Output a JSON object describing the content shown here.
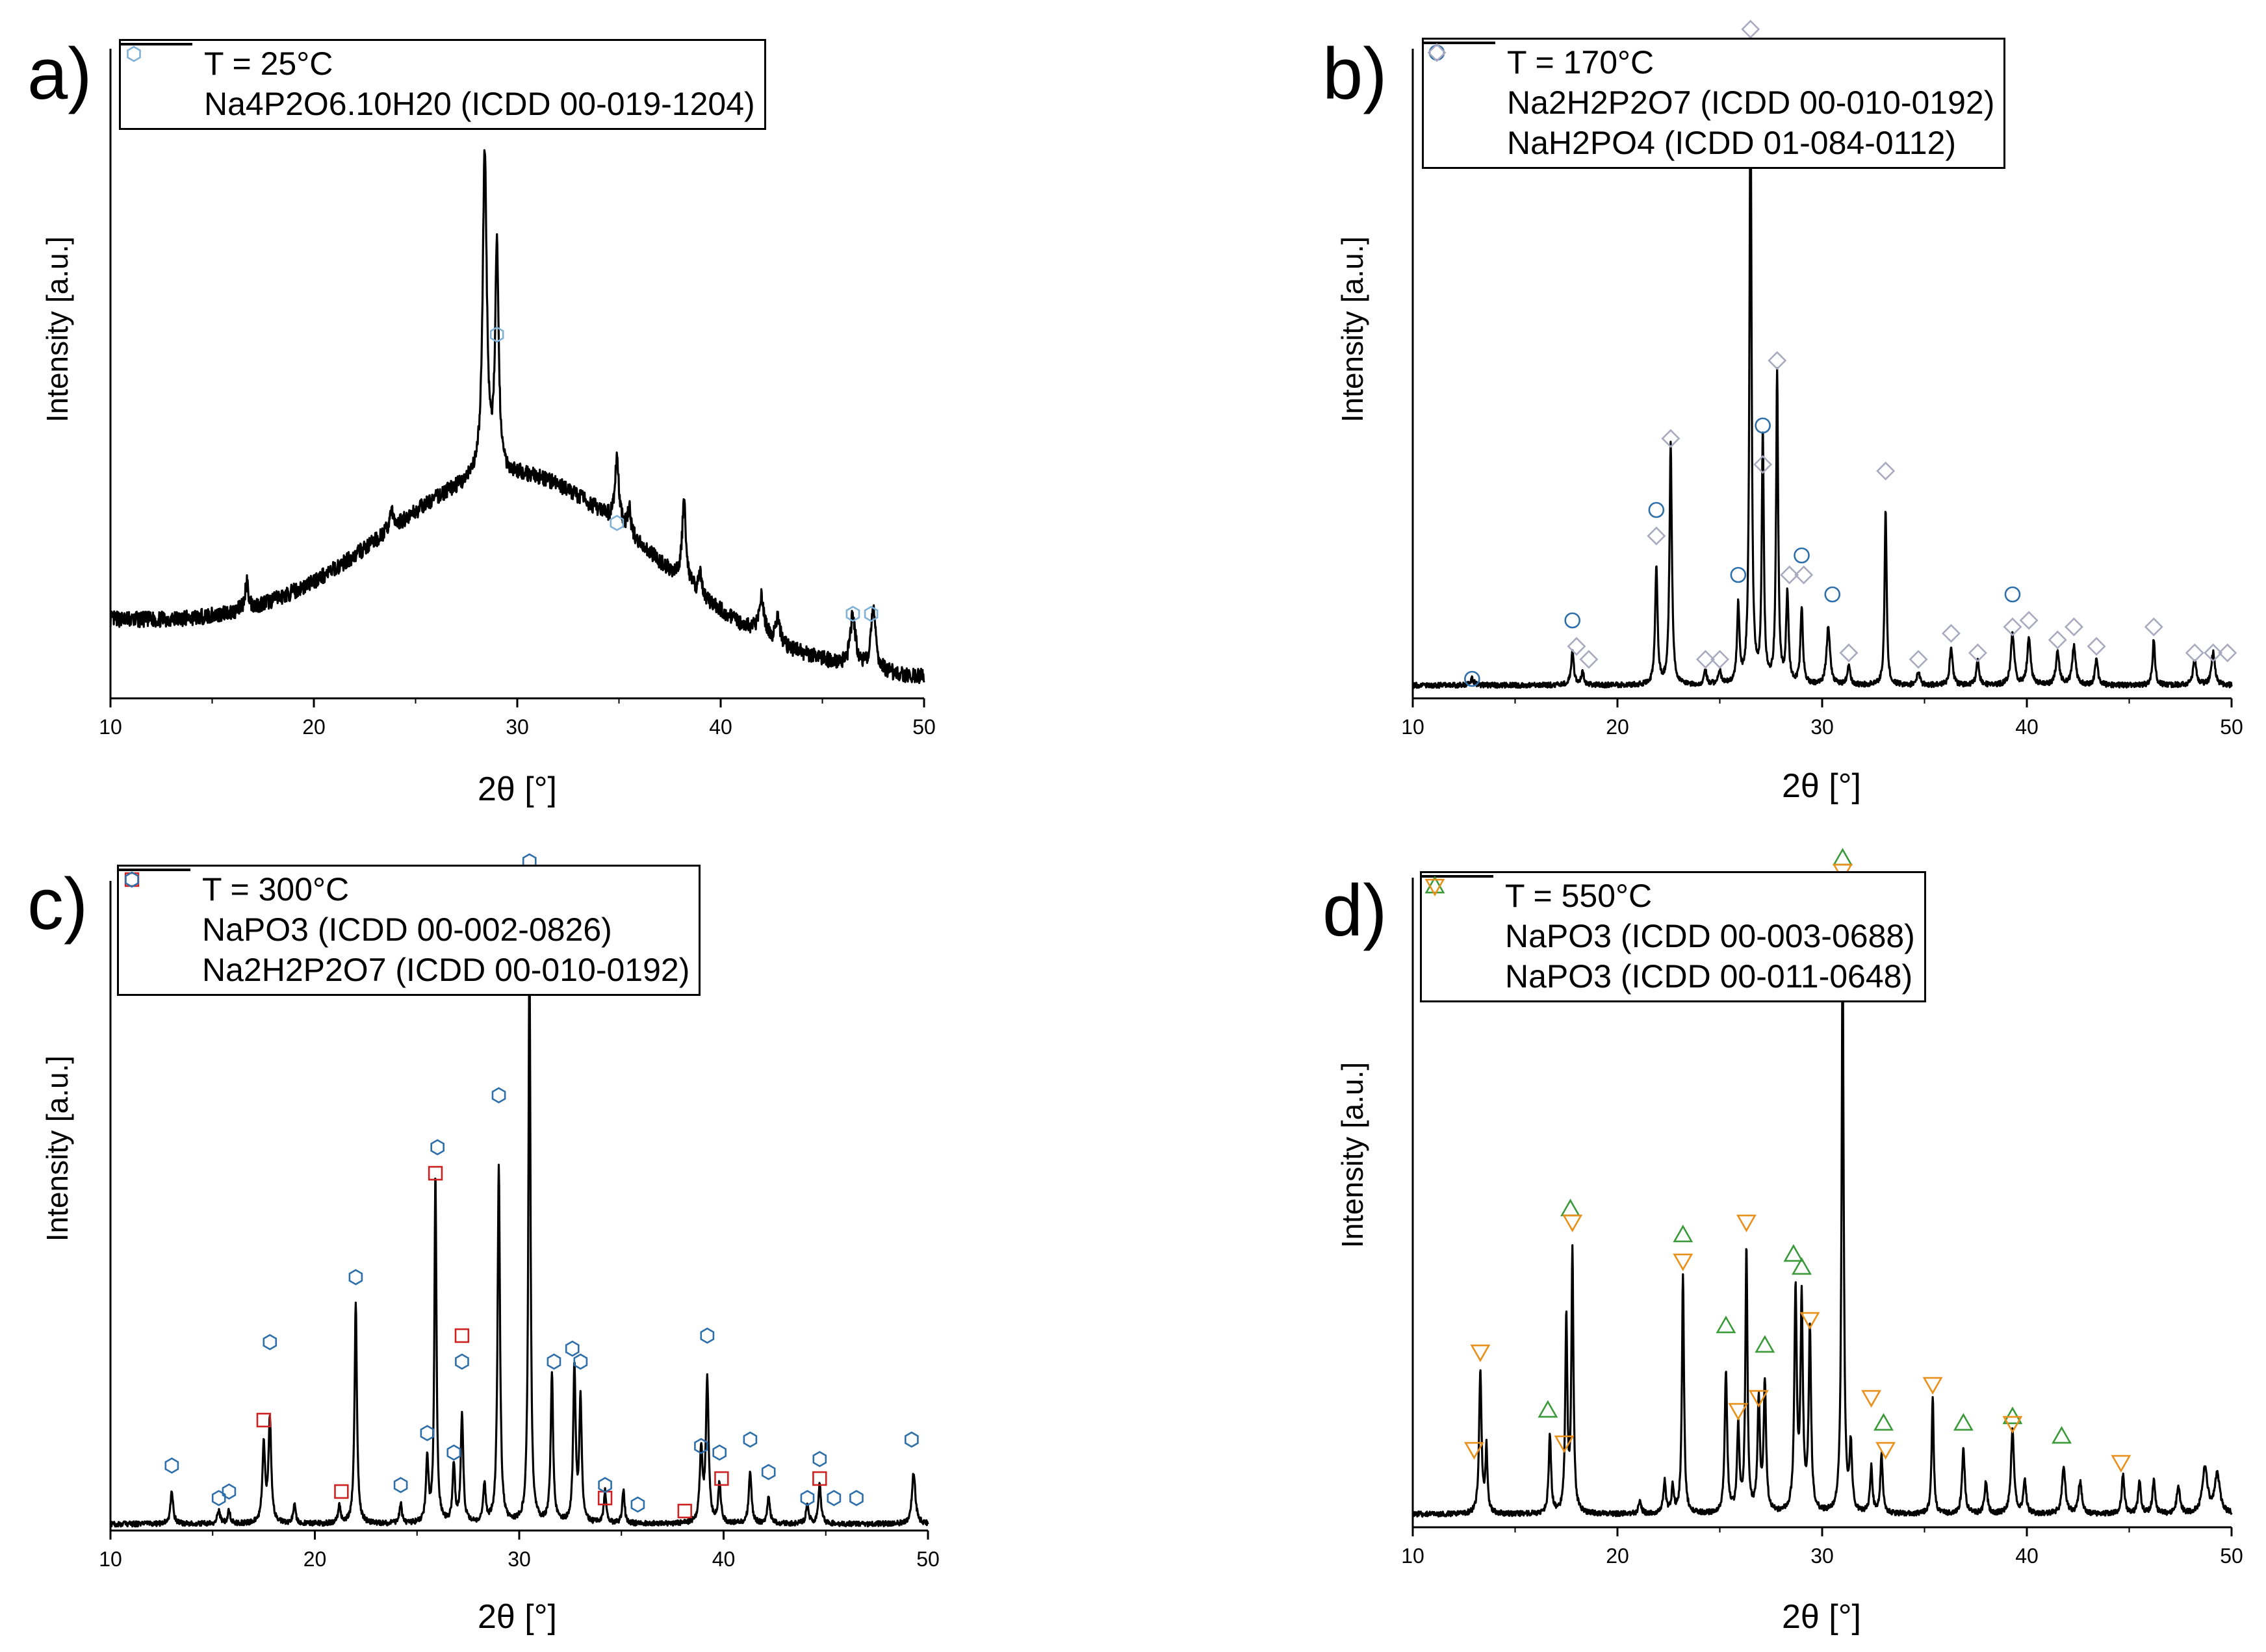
{
  "chart_data": [
    {
      "type": "line",
      "panel": "a)",
      "xlabel": "2θ [°]",
      "ylabel": "Intensity [a.u.]",
      "xlim": [
        10,
        50
      ],
      "xticks": [
        10,
        20,
        30,
        40,
        50
      ],
      "ylim": [
        0,
        100
      ],
      "legend": {
        "placement": "top-left",
        "series_label": "T = 25°C",
        "phases": [
          {
            "name": "Na4P2O6.10H20 (ICDD 00-019-1204)",
            "marker": "hexagon",
            "color": "#7fb0d6"
          }
        ]
      },
      "series": {
        "name": "T = 25°C",
        "baseline": "amorphous",
        "hump": {
          "center": 30.0,
          "height": 27,
          "width": 6.5
        },
        "start": 12,
        "end": 3,
        "peaks": [
          [
            16.7,
            4,
            0.1
          ],
          [
            23.8,
            3,
            0.1
          ],
          [
            28.4,
            50,
            0.12
          ],
          [
            29.0,
            35,
            0.1
          ],
          [
            34.9,
            10,
            0.12
          ],
          [
            35.5,
            4,
            0.1
          ],
          [
            38.2,
            12,
            0.12
          ],
          [
            39.0,
            3,
            0.1
          ],
          [
            42.0,
            6,
            0.15
          ],
          [
            42.8,
            4,
            0.12
          ],
          [
            46.5,
            8,
            0.15
          ],
          [
            47.5,
            9,
            0.15
          ]
        ]
      },
      "markers": [
        {
          "phase": 0,
          "points": [
            [
              29.0,
              56
            ],
            [
              34.9,
              27
            ],
            [
              46.5,
              13
            ],
            [
              47.4,
              13
            ]
          ]
        }
      ]
    },
    {
      "type": "line",
      "panel": "b)",
      "xlabel": "2θ [°]",
      "ylabel": "Intensity [a.u.]",
      "xlim": [
        10,
        50
      ],
      "xticks": [
        10,
        20,
        30,
        40,
        50
      ],
      "ylim": [
        0,
        100
      ],
      "legend": {
        "placement": "top-left",
        "series_label": "T = 170°C",
        "phases": [
          {
            "name": "Na2H2P2O7 (ICDD 00-010-0192)",
            "marker": "circle",
            "color": "#2e6faa"
          },
          {
            "name": "NaH2PO4 (ICDD 01-084-0112)",
            "marker": "diamond",
            "color": "#a9a9c0"
          }
        ]
      },
      "series": {
        "name": "T = 170°C",
        "baseline": "flat",
        "level": 2,
        "peaks": [
          [
            12.9,
            1,
            0.1
          ],
          [
            17.8,
            5,
            0.08
          ],
          [
            18.3,
            2,
            0.08
          ],
          [
            21.9,
            18,
            0.07
          ],
          [
            22.6,
            37,
            0.07
          ],
          [
            24.3,
            2,
            0.08
          ],
          [
            25.0,
            2,
            0.08
          ],
          [
            25.9,
            12,
            0.07
          ],
          [
            26.5,
            94,
            0.06
          ],
          [
            27.1,
            38,
            0.06
          ],
          [
            27.8,
            48,
            0.06
          ],
          [
            28.3,
            14,
            0.07
          ],
          [
            29.0,
            12,
            0.07
          ],
          [
            30.3,
            9,
            0.1
          ],
          [
            31.3,
            3,
            0.08
          ],
          [
            33.1,
            27,
            0.06
          ],
          [
            34.7,
            2,
            0.08
          ],
          [
            36.3,
            6,
            0.08
          ],
          [
            37.6,
            4,
            0.08
          ],
          [
            39.3,
            8,
            0.1
          ],
          [
            40.1,
            7,
            0.1
          ],
          [
            41.5,
            5,
            0.1
          ],
          [
            42.3,
            6,
            0.1
          ],
          [
            43.4,
            4,
            0.08
          ],
          [
            46.2,
            7,
            0.07
          ],
          [
            48.2,
            4,
            0.1
          ],
          [
            49.1,
            5,
            0.1
          ]
        ]
      },
      "markers": [
        {
          "phase": 0,
          "points": [
            [
              12.9,
              3
            ],
            [
              17.8,
              12
            ],
            [
              21.9,
              29
            ],
            [
              25.9,
              19
            ],
            [
              27.1,
              42
            ],
            [
              29.0,
              22
            ],
            [
              30.5,
              16
            ],
            [
              39.3,
              16
            ]
          ]
        },
        {
          "phase": 1,
          "points": [
            [
              18.0,
              8
            ],
            [
              18.6,
              6
            ],
            [
              21.9,
              25
            ],
            [
              22.6,
              40
            ],
            [
              24.3,
              6
            ],
            [
              25.0,
              6
            ],
            [
              26.5,
              103
            ],
            [
              27.1,
              36
            ],
            [
              27.8,
              52
            ],
            [
              28.4,
              19
            ],
            [
              29.1,
              19
            ],
            [
              31.3,
              7
            ],
            [
              33.1,
              35
            ],
            [
              34.7,
              6
            ],
            [
              36.3,
              10
            ],
            [
              37.6,
              7
            ],
            [
              39.3,
              11
            ],
            [
              40.1,
              12
            ],
            [
              41.5,
              9
            ],
            [
              42.3,
              11
            ],
            [
              43.4,
              8
            ],
            [
              46.2,
              11
            ],
            [
              48.2,
              7
            ],
            [
              49.1,
              7
            ],
            [
              49.8,
              7
            ]
          ]
        }
      ]
    },
    {
      "type": "line",
      "panel": "c)",
      "xlabel": "2θ [°]",
      "ylabel": "Intensity [a.u.]",
      "xlim": [
        10,
        50
      ],
      "xticks": [
        10,
        20,
        30,
        40,
        50
      ],
      "ylim": [
        0,
        100
      ],
      "legend": {
        "placement": "top-left",
        "series_label": "T = 300°C",
        "phases": [
          {
            "name": "NaPO3 (ICDD 00-002-0826)",
            "marker": "square",
            "color": "#cc2222"
          },
          {
            "name": "Na2H2P2O7 (ICDD 00-010-0192)",
            "marker": "hexagon",
            "color": "#2e6faa"
          }
        ]
      },
      "series": {
        "name": "T = 300°C",
        "baseline": "flat",
        "level": 1,
        "peaks": [
          [
            13.0,
            5,
            0.08
          ],
          [
            15.3,
            2,
            0.08
          ],
          [
            15.8,
            2,
            0.08
          ],
          [
            17.5,
            12,
            0.08
          ],
          [
            17.8,
            16,
            0.08
          ],
          [
            19.0,
            3,
            0.07
          ],
          [
            21.2,
            3,
            0.07
          ],
          [
            22.0,
            34,
            0.07
          ],
          [
            24.2,
            3,
            0.07
          ],
          [
            25.5,
            10,
            0.07
          ],
          [
            25.9,
            54,
            0.06
          ],
          [
            26.8,
            9,
            0.07
          ],
          [
            27.2,
            17,
            0.07
          ],
          [
            28.3,
            6,
            0.07
          ],
          [
            29.0,
            55,
            0.07
          ],
          [
            30.5,
            90,
            0.06
          ],
          [
            31.6,
            23,
            0.07
          ],
          [
            32.7,
            24,
            0.07
          ],
          [
            33.0,
            19,
            0.07
          ],
          [
            34.2,
            5,
            0.07
          ],
          [
            35.1,
            5,
            0.07
          ],
          [
            38.9,
            11,
            0.08
          ],
          [
            39.2,
            22,
            0.08
          ],
          [
            39.8,
            6,
            0.08
          ],
          [
            41.3,
            8,
            0.08
          ],
          [
            42.2,
            4,
            0.08
          ],
          [
            44.1,
            3,
            0.08
          ],
          [
            44.7,
            6,
            0.08
          ],
          [
            49.3,
            8,
            0.1
          ]
        ]
      },
      "markers": [
        {
          "phase": 0,
          "points": [
            [
              17.5,
              17
            ],
            [
              21.3,
              6
            ],
            [
              25.9,
              55
            ],
            [
              27.2,
              30
            ],
            [
              34.2,
              5
            ],
            [
              38.1,
              3
            ],
            [
              39.9,
              8
            ],
            [
              44.7,
              8
            ]
          ]
        },
        {
          "phase": 1,
          "points": [
            [
              13.0,
              10
            ],
            [
              15.3,
              5
            ],
            [
              15.8,
              6
            ],
            [
              17.8,
              29
            ],
            [
              22.0,
              39
            ],
            [
              24.2,
              7
            ],
            [
              25.5,
              15
            ],
            [
              26.0,
              59
            ],
            [
              26.8,
              12
            ],
            [
              27.2,
              26
            ],
            [
              29.0,
              67
            ],
            [
              30.5,
              103
            ],
            [
              31.7,
              26
            ],
            [
              32.6,
              28
            ],
            [
              33.0,
              26
            ],
            [
              34.2,
              7
            ],
            [
              35.8,
              4
            ],
            [
              38.9,
              13
            ],
            [
              39.2,
              30
            ],
            [
              39.8,
              12
            ],
            [
              41.3,
              14
            ],
            [
              42.2,
              9
            ],
            [
              44.1,
              5
            ],
            [
              44.7,
              11
            ],
            [
              45.4,
              5
            ],
            [
              46.5,
              5
            ],
            [
              49.2,
              14
            ]
          ]
        }
      ]
    },
    {
      "type": "line",
      "panel": "d)",
      "xlabel": "2θ [°]",
      "ylabel": "Intensity [a.u.]",
      "xlim": [
        10,
        50
      ],
      "xticks": [
        10,
        20,
        30,
        40,
        50
      ],
      "ylim": [
        0,
        100
      ],
      "legend": {
        "placement": "top-left",
        "series_label": "T = 550°C",
        "phases": [
          {
            "name": "NaPO3 (ICDD 00-003-0688)",
            "marker": "triangle-up",
            "color": "#3a9a3a"
          },
          {
            "name": "NaPO3 (ICDD 00-011-0648)",
            "marker": "triangle-down",
            "color": "#e8901a"
          }
        ]
      },
      "series": {
        "name": "T = 550°C",
        "baseline": "flat",
        "level": 2,
        "peaks": [
          [
            13.3,
            22,
            0.07
          ],
          [
            13.6,
            10,
            0.06
          ],
          [
            16.7,
            12,
            0.07
          ],
          [
            17.5,
            30,
            0.06
          ],
          [
            17.8,
            40,
            0.06
          ],
          [
            21.1,
            2,
            0.08
          ],
          [
            22.3,
            5,
            0.07
          ],
          [
            22.7,
            4,
            0.07
          ],
          [
            23.2,
            37,
            0.06
          ],
          [
            25.3,
            22,
            0.07
          ],
          [
            25.9,
            13,
            0.07
          ],
          [
            26.3,
            41,
            0.06
          ],
          [
            26.9,
            17,
            0.07
          ],
          [
            27.2,
            20,
            0.07
          ],
          [
            28.7,
            34,
            0.07
          ],
          [
            29.0,
            32,
            0.07
          ],
          [
            29.4,
            28,
            0.07
          ],
          [
            31.0,
            89,
            0.06
          ],
          [
            31.4,
            10,
            0.07
          ],
          [
            32.4,
            7,
            0.07
          ],
          [
            32.9,
            9,
            0.07
          ],
          [
            35.4,
            18,
            0.06
          ],
          [
            36.9,
            10,
            0.08
          ],
          [
            38.0,
            5,
            0.08
          ],
          [
            39.3,
            13,
            0.09
          ],
          [
            39.9,
            5,
            0.08
          ],
          [
            41.8,
            7,
            0.1
          ],
          [
            42.6,
            5,
            0.1
          ],
          [
            44.7,
            6,
            0.08
          ],
          [
            45.5,
            5,
            0.08
          ],
          [
            46.2,
            5,
            0.08
          ],
          [
            47.4,
            4,
            0.1
          ],
          [
            48.7,
            7,
            0.15
          ],
          [
            49.3,
            6,
            0.15
          ]
        ]
      },
      "markers": [
        {
          "phase": 0,
          "points": [
            [
              16.6,
              18
            ],
            [
              17.7,
              49
            ],
            [
              23.2,
              45
            ],
            [
              25.3,
              31
            ],
            [
              27.2,
              28
            ],
            [
              28.6,
              42
            ],
            [
              29.0,
              40
            ],
            [
              31.0,
              103
            ],
            [
              33.0,
              16
            ],
            [
              36.9,
              16
            ],
            [
              39.3,
              17
            ],
            [
              41.7,
              14
            ]
          ]
        },
        {
          "phase": 1,
          "points": [
            [
              13.0,
              12
            ],
            [
              13.3,
              27
            ],
            [
              17.4,
              13
            ],
            [
              17.8,
              47
            ],
            [
              23.2,
              41
            ],
            [
              25.9,
              18
            ],
            [
              26.3,
              47
            ],
            [
              26.9,
              20
            ],
            [
              29.4,
              32
            ],
            [
              31.0,
              101
            ],
            [
              32.4,
              20
            ],
            [
              33.1,
              12
            ],
            [
              35.4,
              22
            ],
            [
              39.3,
              16
            ],
            [
              44.6,
              10
            ]
          ]
        }
      ]
    }
  ]
}
